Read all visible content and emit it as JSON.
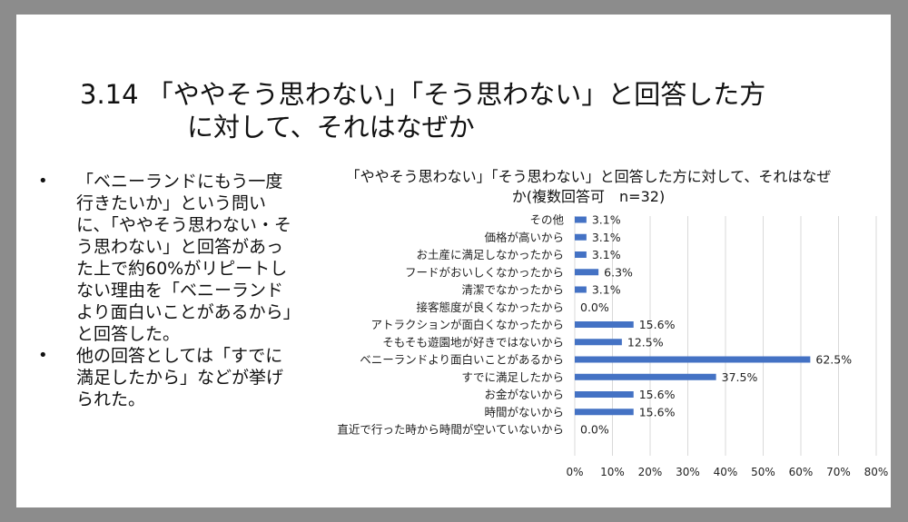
{
  "slide": {
    "title_line1": "3.14 「ややそう思わない」「そう思わない」と回答した方",
    "title_line2": "に対して、それはなぜか",
    "bullets": [
      "「ベニーランドにもう一度行きたいか」という問いに、「ややそう思わない・そう思わない」と回答があった上で約60%がリピートしない理由を「ベニーランドより面白いことがあるから」と回答した。",
      "他の回答としては「すでに満足したから」などが挙げられた。"
    ],
    "bullet_symbol": "•"
  },
  "chart_data": {
    "type": "bar",
    "orientation": "horizontal",
    "title": "「ややそう思わない」「そう思わない」と回答した方に対して、それはなぜか(複数回答可　n=32)",
    "categories": [
      "その他",
      "価格が高いから",
      "お土産に満足しなかったから",
      "フードがおいしくなかったから",
      "清潔でなかったから",
      "接客態度が良くなかったから",
      "アトラクションが面白くなかったから",
      "そもそも遊園地が好きではないから",
      "ベニーランドより面白いことがあるから",
      "すでに満足したから",
      "お金がないから",
      "時間がないから",
      "直近で行った時から時間が空いていないから"
    ],
    "values": [
      3.1,
      3.1,
      3.1,
      6.3,
      3.1,
      0.0,
      15.6,
      12.5,
      62.5,
      37.5,
      15.6,
      15.6,
      0.0
    ],
    "data_labels": [
      "3.1%",
      "3.1%",
      "3.1%",
      "6.3%",
      "3.1%",
      "0.0%",
      "15.6%",
      "12.5%",
      "62.5%",
      "37.5%",
      "15.6%",
      "15.6%",
      "0.0%"
    ],
    "xlim": [
      0,
      80
    ],
    "xticks": [
      "0%",
      "10%",
      "20%",
      "30%",
      "40%",
      "50%",
      "60%",
      "70%",
      "80%"
    ],
    "grid": true,
    "bar_color": "#4472c4",
    "grid_color": "#d9d9d9"
  }
}
